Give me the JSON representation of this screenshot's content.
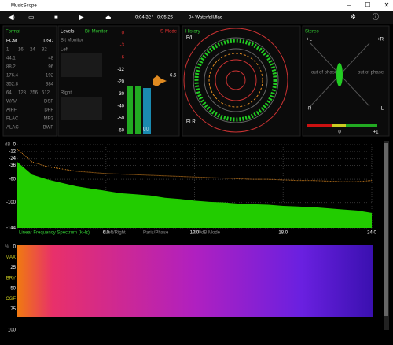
{
  "window": {
    "title": "MusicScope"
  },
  "toolbar": {
    "elapsed": "0:04:32",
    "separator": "/",
    "total": "0:05:26",
    "track": "04 Waterfall.flac"
  },
  "format": {
    "title": "Format",
    "rows": [
      [
        "PCM",
        "DSD"
      ],
      [
        "1",
        "16",
        "24",
        "32"
      ],
      [
        "44.1",
        "48"
      ],
      [
        "88.2",
        "96"
      ],
      [
        "176.4",
        "192"
      ],
      [
        "352.8",
        "384"
      ],
      [
        "64",
        "128",
        "256",
        "512"
      ],
      [
        "WAV",
        "DSF"
      ],
      [
        "AIFF",
        "DFF"
      ],
      [
        "FLAC",
        "MP3"
      ],
      [
        "ALAC",
        "BWF"
      ]
    ]
  },
  "levels": {
    "title": "Levels",
    "mode": "Bit Monitor",
    "monitor_label": "Bit Monitor",
    "left": "Left",
    "right": "Right"
  },
  "meter": {
    "mode": "S-Mode",
    "scale": [
      "0",
      "-3",
      "-6",
      "-12",
      "-20",
      "-30",
      "-40",
      "-50",
      "-60"
    ],
    "reading": "6.5",
    "channel": "LU"
  },
  "history": {
    "title": "History",
    "top": "P/L",
    "bottom": "PLR"
  },
  "stereo": {
    "title": "Stereo",
    "plus_l": "+L",
    "plus_r": "+R",
    "minus_r": "-R",
    "minus_l": "-L",
    "out_left": "out of phase",
    "out_right": "out of phase",
    "zero": "0",
    "plus_one": "+1"
  },
  "spectrum": {
    "unit": "dB",
    "ylim": [
      -144,
      0
    ],
    "yticks": [
      0,
      -12,
      -24,
      -36,
      -60,
      -100,
      -144
    ],
    "xlim": [
      0,
      24
    ],
    "xticks": [
      {
        "value": 6,
        "label": "6.0"
      },
      {
        "value": 12,
        "label": "12.0"
      },
      {
        "value": 18,
        "label": "18.0"
      },
      {
        "value": 24,
        "label": "24.0"
      }
    ],
    "x": [
      0,
      1,
      2,
      3,
      4,
      5,
      6,
      7,
      8,
      9,
      10,
      11,
      12,
      13,
      14,
      15,
      16,
      17,
      18,
      19,
      20,
      21,
      22,
      23,
      24
    ],
    "level": [
      -30,
      -52,
      -60,
      -66,
      -72,
      -76,
      -80,
      -84,
      -86,
      -88,
      -92,
      -94,
      -97,
      -99,
      -100,
      -102,
      -103,
      -104,
      -106,
      -107,
      -108,
      -110,
      -112,
      -114,
      -118
    ],
    "peak": [
      -8,
      -30,
      -38,
      -42,
      -46,
      -48,
      -50,
      -51,
      -52,
      -53,
      -54,
      -55,
      -56,
      -57,
      -58,
      -59,
      -60,
      -60,
      -61,
      -62,
      -62,
      -63,
      -64,
      -64,
      -62
    ],
    "level_color": "#22cc00",
    "peak_color": "#e08a20",
    "footer": [
      "Linear Frequency Spectrum (kHz)",
      "Left/Right",
      "Paris/Phase",
      "-200dB Mode"
    ]
  },
  "spectrogram": {
    "unit": "%",
    "ylim": [
      0,
      100
    ],
    "yticks": [
      0,
      25,
      50,
      75,
      100
    ],
    "bands": [
      "MAX",
      "BRY",
      "CGF"
    ]
  }
}
